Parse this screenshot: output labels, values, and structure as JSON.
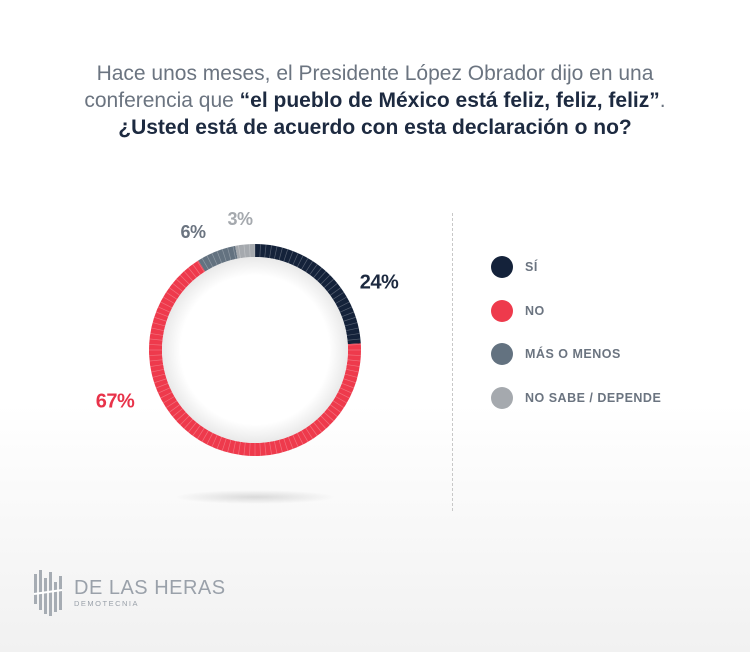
{
  "question": {
    "line1": "Hace unos meses, el Presidente López Obrador dijo en una",
    "line2_plain": "conferencia que ",
    "line2_bold": "“el pueblo de México está feliz, feliz, feliz”",
    "line2_end": ".",
    "line3_bold": "¿Usted está de acuerdo con esta declaración o no?"
  },
  "chart_data": {
    "type": "pie",
    "style": "donut",
    "categories": [
      "SÍ",
      "NO",
      "MÁS O MENOS",
      "NO SABE / DEPENDE"
    ],
    "values": [
      24,
      67,
      6,
      3
    ],
    "data_labels": [
      "24%",
      "67%",
      "6%",
      "3%"
    ],
    "colors": [
      "#14223a",
      "#ee3a4c",
      "#637280",
      "#a5a9ae"
    ],
    "label_colors": [
      "#1d2a40",
      "#e8334a",
      "#6b7480",
      "#a5a9ae"
    ],
    "legend_position": "right"
  },
  "legend": {
    "items": [
      {
        "label": "SÍ",
        "color": "#14223a"
      },
      {
        "label": "NO",
        "color": "#ee3a4c"
      },
      {
        "label": "MÁS O MENOS",
        "color": "#637280"
      },
      {
        "label": "NO SABE / DEPENDE",
        "color": "#a5a9ae"
      }
    ]
  },
  "logo": {
    "name": "DE LAS HERAS",
    "sub": "DEMOTECNIA"
  }
}
